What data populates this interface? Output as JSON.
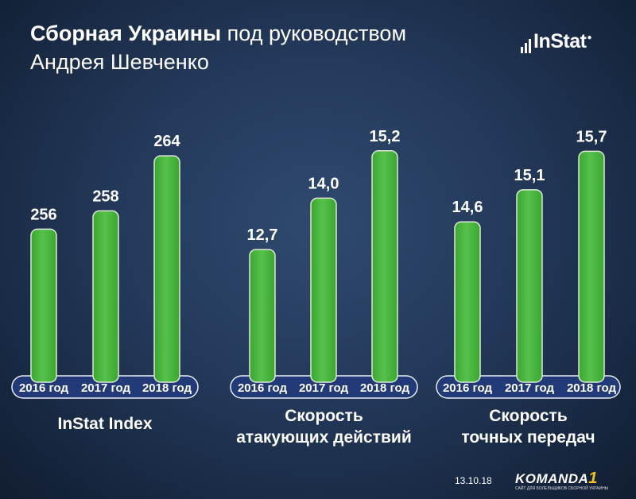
{
  "header": {
    "title_bold": "Сборная Украины",
    "title_regular": "под руководством",
    "title_line2": "Андрея Шевченко"
  },
  "logo": {
    "text": "InStat"
  },
  "footer": {
    "date": "13.10.18",
    "brand": "KOMANDA",
    "brand_suffix": "1",
    "brand_tagline": "САЙТ ДЛЯ БОЛЕЛЬЩИКОВ СБОРНОЙ УКРАИНЫ"
  },
  "colors": {
    "bar_fill": "#3aa630",
    "bar_highlight": "#56c24a",
    "bar_border": "#dfe8d8",
    "pill_bg": "#223a78",
    "pill_border": "#e8edf5"
  },
  "chart_data": [
    {
      "type": "bar",
      "categories": [
        "2016 год",
        "2017 год",
        "2018 год"
      ],
      "values": [
        256,
        258,
        264
      ],
      "value_labels": [
        "256",
        "258",
        "264"
      ],
      "title": "InStat Index",
      "ylim": [
        240,
        268
      ]
    },
    {
      "type": "bar",
      "categories": [
        "2016 год",
        "2017 год",
        "2018 год"
      ],
      "values": [
        12.7,
        14.0,
        15.2
      ],
      "value_labels": [
        "12,7",
        "14,0",
        "15,2"
      ],
      "title": "Скорость атакующих действий",
      "ylim": [
        9.5,
        16.0
      ]
    },
    {
      "type": "bar",
      "categories": [
        "2016 год",
        "2017 год",
        "2018 год"
      ],
      "values": [
        14.6,
        15.1,
        15.7
      ],
      "value_labels": [
        "14,6",
        "15,1",
        "15,7"
      ],
      "title": "Скорость точных передач",
      "ylim": [
        12.2,
        16.2
      ]
    }
  ]
}
